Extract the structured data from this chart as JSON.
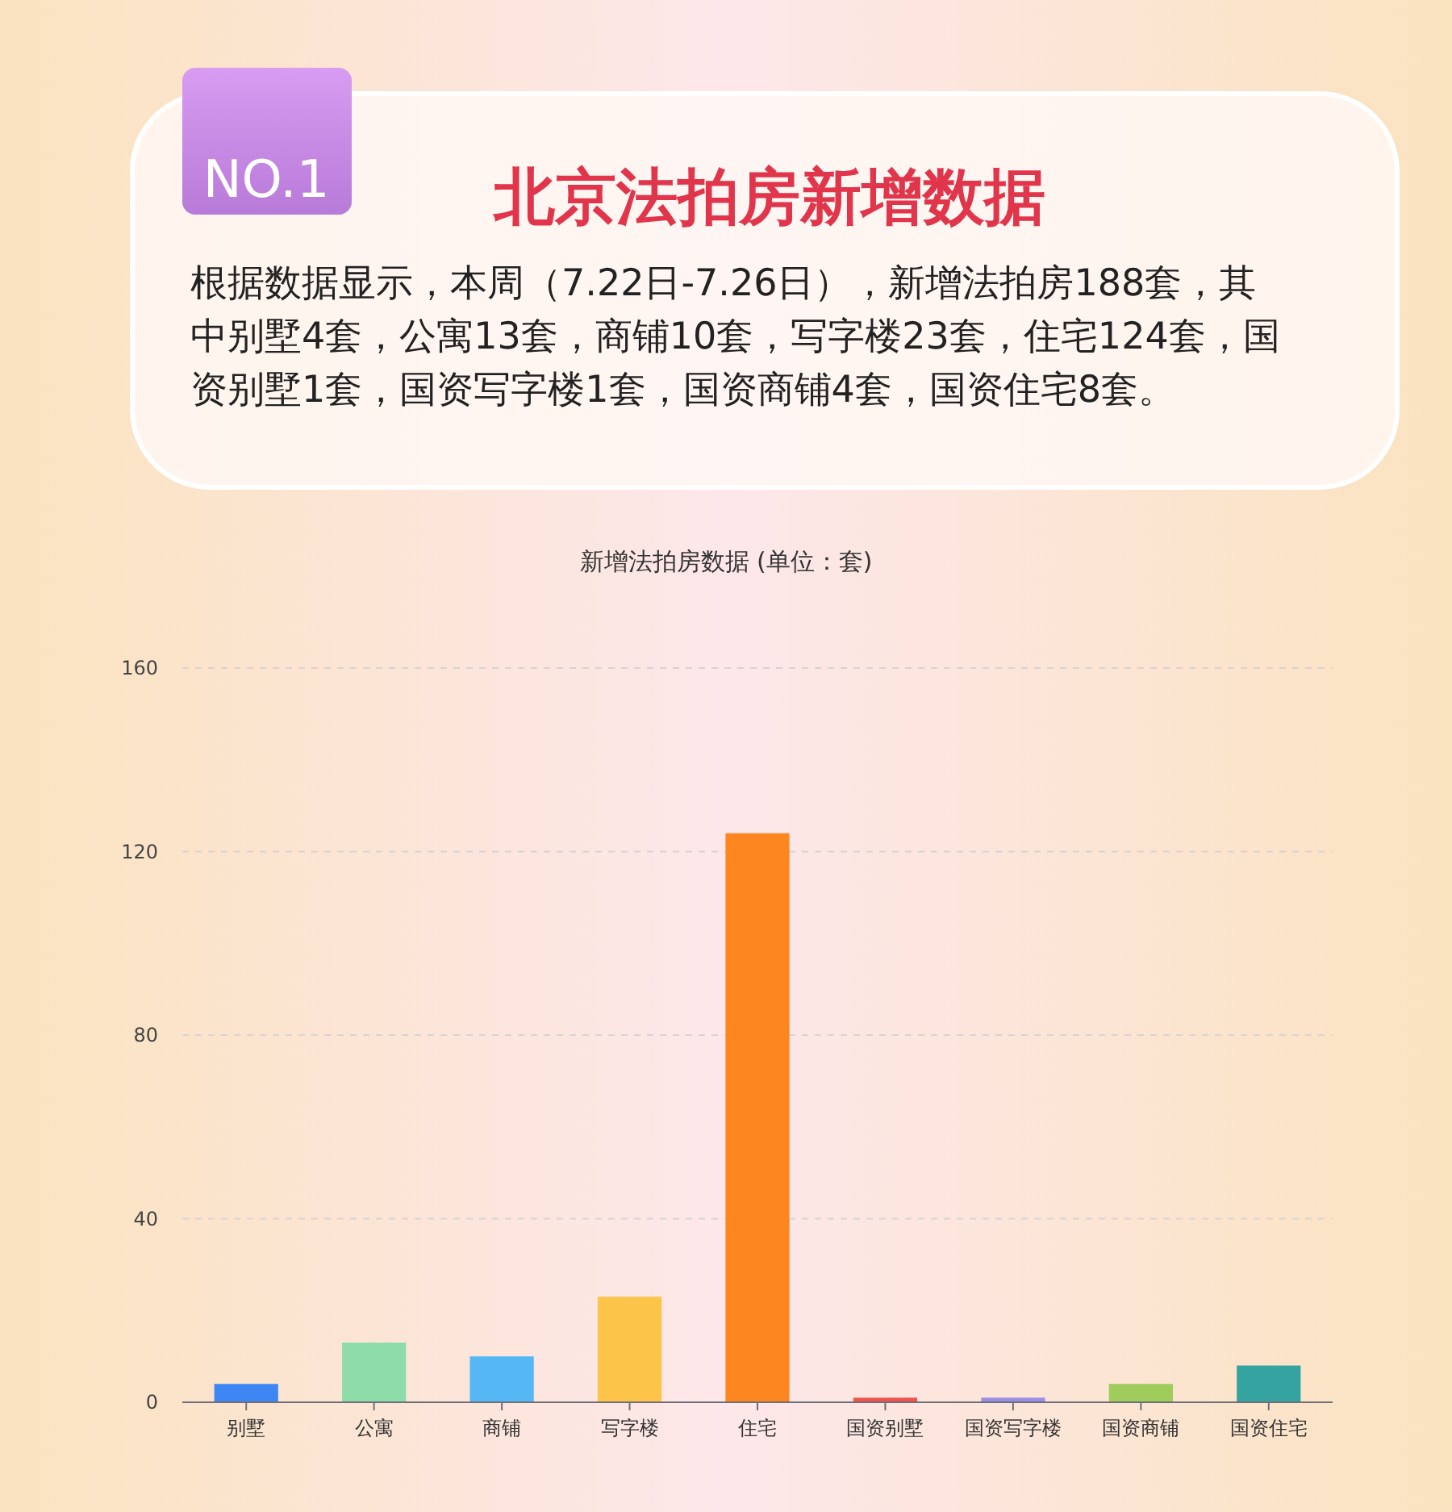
{
  "chart_data": {
    "type": "bar",
    "title": "北京法拍房新增数据",
    "subtitle": "根据数据显示，本周（7.22日-7.26日），新增法拍房188套，其中别墅4套，公寓13套，商铺10套，写字楼23套，住宅124套，国资别墅1套，国资写字楼1套，国资商铺4套，国资住宅8套。",
    "annotations": [
      "NO.1",
      "新增法拍房数据 (单位：套)"
    ],
    "categories": [
      "别墅",
      "公寓",
      "商铺",
      "写字楼",
      "住宅",
      "国资别墅",
      "国资写字楼",
      "国资商铺",
      "国资住宅"
    ],
    "values": [
      4,
      13,
      10,
      23,
      124,
      1,
      1,
      4,
      8
    ],
    "colors": [
      "#3f86f5",
      "#8ddcaa",
      "#55b8f5",
      "#fdc44a",
      "#fd8620",
      "#f0524f",
      "#9a8ee8",
      "#a0cc5c",
      "#35a3a0"
    ],
    "ylim": [
      0,
      160
    ],
    "yticks": [
      0,
      40,
      80,
      120,
      160
    ],
    "grid": "y"
  }
}
